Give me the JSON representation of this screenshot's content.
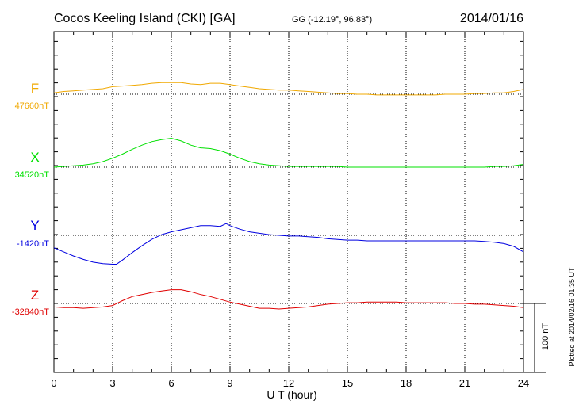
{
  "chart_data": {
    "type": "line",
    "title": "Cocos Keeling Island (CKI)  [GA]",
    "coords": "GG (-12.19°,  96.83°)",
    "date": "2014/01/16",
    "xlabel": "U T (hour)",
    "xlim": [
      0,
      24
    ],
    "xticks": [
      0,
      3,
      6,
      9,
      12,
      15,
      18,
      21,
      24
    ],
    "xtick_labels": [
      "0",
      "3",
      "6",
      "9",
      "12",
      "15",
      "18",
      "21",
      "24"
    ],
    "grid": true,
    "scale_label": "100 nT",
    "plotted_note": "Plotted at 2014/02/16 01:35 UT",
    "series": [
      {
        "name": "F",
        "baseline_label": "47660nT",
        "color": "#f0a800",
        "x": [
          0,
          0.5,
          1,
          1.5,
          2,
          2.5,
          3,
          3.5,
          4,
          4.5,
          5,
          5.5,
          6,
          6.5,
          7,
          7.5,
          8,
          8.5,
          9,
          9.5,
          10,
          10.5,
          11,
          11.5,
          12,
          12.5,
          13,
          13.5,
          14,
          14.5,
          15,
          15.5,
          16,
          16.5,
          17,
          17.5,
          18,
          18.5,
          19,
          19.5,
          20,
          20.5,
          21,
          21.5,
          22,
          22.5,
          23,
          23.5,
          24
        ],
        "values": [
          2,
          4,
          5,
          6,
          7,
          8,
          11,
          12,
          13,
          14,
          16,
          17,
          17,
          17,
          15,
          14,
          16,
          16,
          14,
          12,
          10,
          8,
          7,
          6,
          6,
          5,
          4,
          3,
          2,
          1,
          1,
          0,
          0,
          -1,
          -1,
          -1,
          -1,
          -1,
          -1,
          -1,
          0,
          0,
          0,
          1,
          1,
          2,
          2,
          4,
          7
        ]
      },
      {
        "name": "X",
        "baseline_label": "34520nT",
        "color": "#00e000",
        "x": [
          0,
          0.5,
          1,
          1.5,
          2,
          2.5,
          3,
          3.5,
          4,
          4.5,
          5,
          5.5,
          6,
          6.5,
          7,
          7.5,
          8,
          8.5,
          9,
          9.5,
          10,
          10.5,
          11,
          11.5,
          12,
          12.5,
          13,
          13.5,
          14,
          14.5,
          15,
          15.5,
          16,
          16.5,
          17,
          17.5,
          18,
          18.5,
          19,
          19.5,
          20,
          20.5,
          21,
          21.5,
          22,
          22.5,
          23,
          23.5,
          24
        ],
        "values": [
          0,
          1,
          2,
          3,
          5,
          8,
          13,
          19,
          26,
          32,
          37,
          40,
          42,
          38,
          32,
          28,
          27,
          24,
          19,
          13,
          8,
          5,
          3,
          2,
          1,
          1,
          1,
          1,
          1,
          1,
          0,
          0,
          0,
          0,
          0,
          0,
          0,
          0,
          0,
          0,
          0,
          0,
          0,
          0,
          0,
          1,
          1,
          2,
          4
        ]
      },
      {
        "name": "Y",
        "baseline_label": "-1420nT",
        "color": "#0000e0",
        "x": [
          0,
          0.5,
          1,
          1.5,
          2,
          2.5,
          3,
          3.2,
          3.5,
          4,
          4.5,
          5,
          5.5,
          6,
          6.5,
          7,
          7.5,
          8,
          8.5,
          8.8,
          9,
          9.5,
          10,
          10.5,
          11,
          11.5,
          12,
          12.5,
          13,
          13.5,
          14,
          14.5,
          15,
          15.5,
          16,
          16.5,
          17,
          17.5,
          18,
          18.5,
          19,
          19.5,
          20,
          20.5,
          21,
          21.5,
          22,
          22.5,
          23,
          23.5,
          24
        ],
        "values": [
          -18,
          -24,
          -30,
          -35,
          -39,
          -41,
          -42,
          -42,
          -36,
          -25,
          -15,
          -6,
          1,
          5,
          8,
          11,
          14,
          14,
          13,
          17,
          14,
          9,
          5,
          3,
          1,
          0,
          -1,
          -1,
          -2,
          -3,
          -5,
          -6,
          -7,
          -7,
          -8,
          -8,
          -8,
          -8,
          -8,
          -8,
          -8,
          -8,
          -8,
          -8,
          -8,
          -8,
          -9,
          -10,
          -12,
          -16,
          -24
        ]
      },
      {
        "name": "Z",
        "baseline_label": "-32840nT",
        "color": "#e00000",
        "x": [
          0,
          0.5,
          1,
          1.5,
          2,
          2.5,
          3,
          3.5,
          4,
          4.5,
          5,
          5.5,
          6,
          6.5,
          7,
          7.5,
          8,
          8.5,
          9,
          9.5,
          10,
          10.5,
          11,
          11.5,
          12,
          12.5,
          13,
          13.5,
          14,
          14.5,
          15,
          15.5,
          16,
          16.5,
          17,
          17.5,
          18,
          18.5,
          19,
          19.5,
          20,
          20.5,
          21,
          21.5,
          22,
          22.5,
          23,
          23.5,
          24
        ],
        "values": [
          -5,
          -6,
          -6,
          -7,
          -6,
          -5,
          -3,
          4,
          10,
          13,
          16,
          18,
          20,
          20,
          17,
          13,
          10,
          6,
          2,
          -1,
          -4,
          -7,
          -7,
          -8,
          -7,
          -6,
          -5,
          -3,
          -1,
          0,
          1,
          1,
          2,
          2,
          2,
          2,
          1,
          1,
          1,
          1,
          1,
          0,
          0,
          -1,
          -1,
          -2,
          -3,
          -4,
          -6
        ]
      }
    ]
  }
}
